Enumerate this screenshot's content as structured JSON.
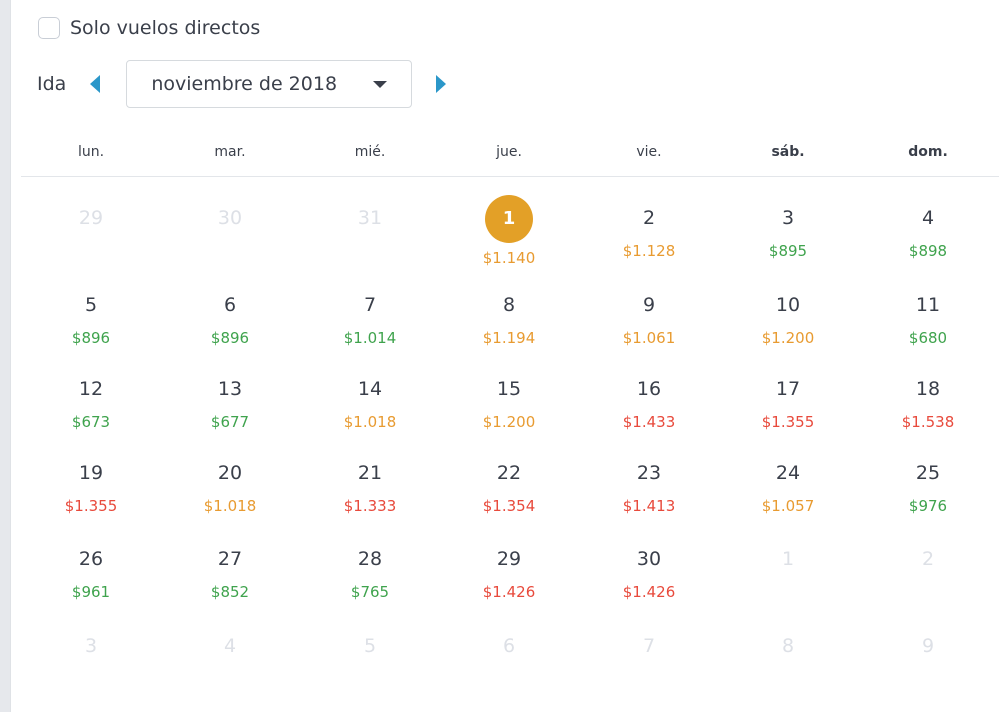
{
  "filters": {
    "direct_label": "Solo vuelos directos",
    "direct_checked": false
  },
  "nav": {
    "ida_label": "Ida",
    "month_label": "noviembre de 2018"
  },
  "weekdays": [
    "lun.",
    "mar.",
    "mié.",
    "jue.",
    "vie.",
    "sáb.",
    "dom."
  ],
  "colors": {
    "accent": "#2b97c9",
    "selected": "#e3a027",
    "cheap": "#3fa34d",
    "mid": "#e89b31",
    "expensive": "#e84a3c",
    "muted": "#dde0e6"
  },
  "weeks": [
    [
      {
        "day": "29",
        "muted": true
      },
      {
        "day": "30",
        "muted": true
      },
      {
        "day": "31",
        "muted": true
      },
      {
        "day": "1",
        "price": "$1.140",
        "level": "orange",
        "selected": true
      },
      {
        "day": "2",
        "price": "$1.128",
        "level": "orange"
      },
      {
        "day": "3",
        "price": "$895",
        "level": "green"
      },
      {
        "day": "4",
        "price": "$898",
        "level": "green"
      }
    ],
    [
      {
        "day": "5",
        "price": "$896",
        "level": "green"
      },
      {
        "day": "6",
        "price": "$896",
        "level": "green"
      },
      {
        "day": "7",
        "price": "$1.014",
        "level": "green"
      },
      {
        "day": "8",
        "price": "$1.194",
        "level": "orange"
      },
      {
        "day": "9",
        "price": "$1.061",
        "level": "orange"
      },
      {
        "day": "10",
        "price": "$1.200",
        "level": "orange"
      },
      {
        "day": "11",
        "price": "$680",
        "level": "green"
      }
    ],
    [
      {
        "day": "12",
        "price": "$673",
        "level": "green"
      },
      {
        "day": "13",
        "price": "$677",
        "level": "green"
      },
      {
        "day": "14",
        "price": "$1.018",
        "level": "orange"
      },
      {
        "day": "15",
        "price": "$1.200",
        "level": "orange"
      },
      {
        "day": "16",
        "price": "$1.433",
        "level": "red"
      },
      {
        "day": "17",
        "price": "$1.355",
        "level": "red"
      },
      {
        "day": "18",
        "price": "$1.538",
        "level": "red"
      }
    ],
    [
      {
        "day": "19",
        "price": "$1.355",
        "level": "red"
      },
      {
        "day": "20",
        "price": "$1.018",
        "level": "orange"
      },
      {
        "day": "21",
        "price": "$1.333",
        "level": "red"
      },
      {
        "day": "22",
        "price": "$1.354",
        "level": "red"
      },
      {
        "day": "23",
        "price": "$1.413",
        "level": "red"
      },
      {
        "day": "24",
        "price": "$1.057",
        "level": "orange"
      },
      {
        "day": "25",
        "price": "$976",
        "level": "green"
      }
    ],
    [
      {
        "day": "26",
        "price": "$961",
        "level": "green"
      },
      {
        "day": "27",
        "price": "$852",
        "level": "green"
      },
      {
        "day": "28",
        "price": "$765",
        "level": "green"
      },
      {
        "day": "29",
        "price": "$1.426",
        "level": "red"
      },
      {
        "day": "30",
        "price": "$1.426",
        "level": "red"
      },
      {
        "day": "1",
        "muted": true
      },
      {
        "day": "2",
        "muted": true
      }
    ],
    [
      {
        "day": "3",
        "muted": true
      },
      {
        "day": "4",
        "muted": true
      },
      {
        "day": "5",
        "muted": true
      },
      {
        "day": "6",
        "muted": true
      },
      {
        "day": "7",
        "muted": true
      },
      {
        "day": "8",
        "muted": true
      },
      {
        "day": "9",
        "muted": true
      }
    ]
  ]
}
